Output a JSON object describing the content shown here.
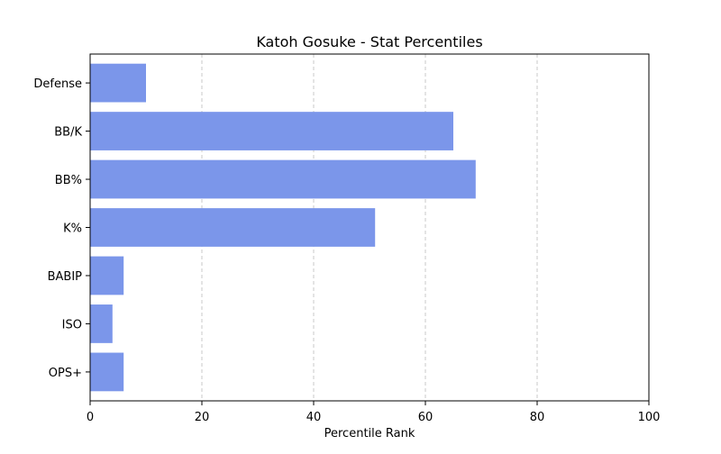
{
  "chart_data": {
    "type": "bar",
    "orientation": "horizontal",
    "title": "Katoh Gosuke - Stat Percentiles",
    "xlabel": "Percentile Rank",
    "ylabel": "",
    "categories": [
      "Defense",
      "BB/K",
      "BB%",
      "K%",
      "BABIP",
      "ISO",
      "OPS+"
    ],
    "values": [
      10,
      65,
      69,
      51,
      6,
      4,
      6
    ],
    "xlim": [
      0,
      100
    ],
    "xticks": [
      0,
      20,
      40,
      60,
      80,
      100
    ],
    "grid": "x-dashed",
    "bar_color": "#7b96ea",
    "grid_color": "#c8c8c8"
  }
}
